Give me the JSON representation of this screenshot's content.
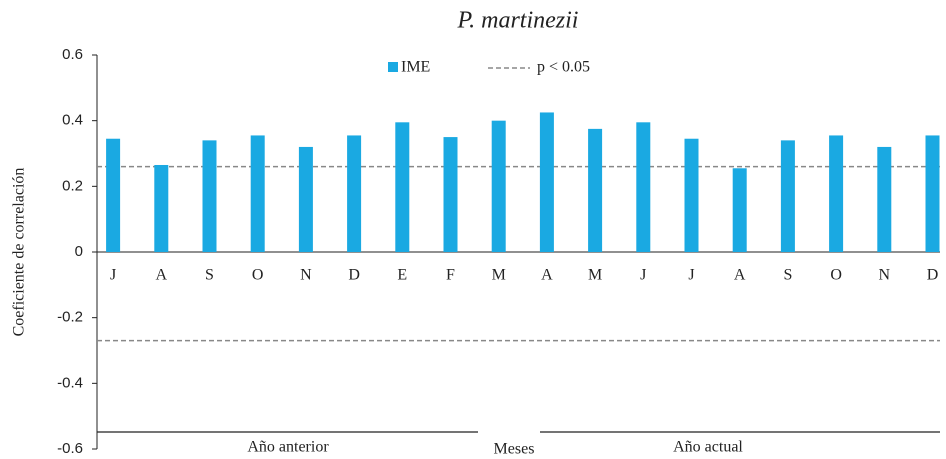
{
  "chart_data": {
    "type": "bar",
    "title": "P. martinezii",
    "ylabel": "Coeficiente de correlación",
    "xlabel": "Meses",
    "groups": [
      "Año anterior",
      "Año actual"
    ],
    "categories": [
      "J",
      "A",
      "S",
      "O",
      "N",
      "D",
      "E",
      "F",
      "M",
      "A",
      "M",
      "J",
      "J",
      "A",
      "S",
      "O",
      "N",
      "D"
    ],
    "series": [
      {
        "name": "IME",
        "color": "#1aa9e2",
        "values": [
          0.345,
          0.265,
          0.34,
          0.355,
          0.32,
          0.355,
          0.395,
          0.35,
          0.4,
          0.425,
          0.375,
          0.395,
          0.345,
          0.255,
          0.34,
          0.355,
          0.32,
          0.355
        ]
      }
    ],
    "threshold": {
      "name": "p < 0.05",
      "color": "#888888",
      "values": [
        0.26,
        -0.27
      ]
    },
    "ylim": [
      -0.6,
      0.6
    ],
    "yticks": [
      -0.6,
      -0.4,
      -0.2,
      0,
      0.2,
      0.4,
      0.6
    ],
    "grid": false
  }
}
